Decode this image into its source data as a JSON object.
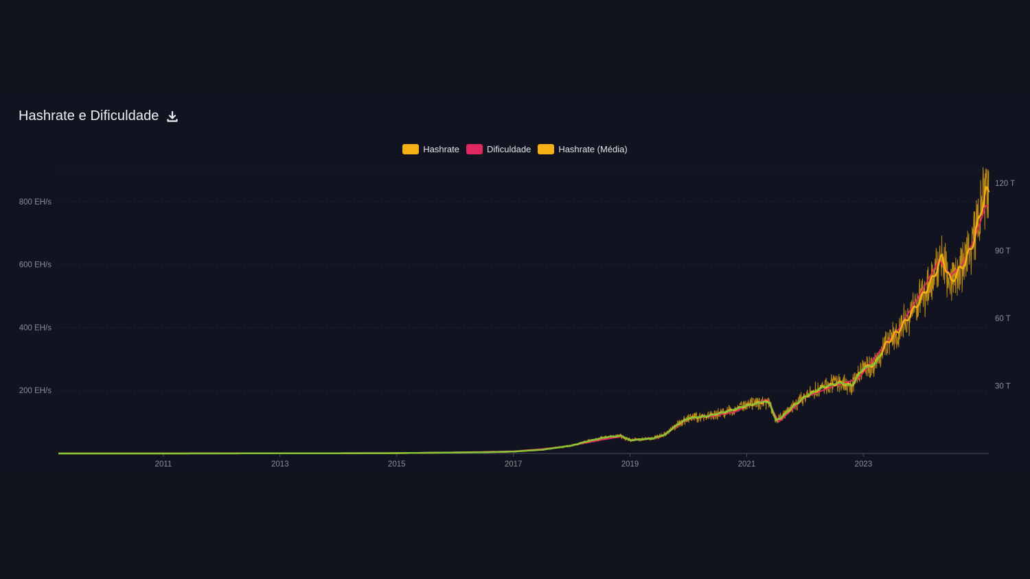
{
  "header": {
    "title": "Hashrate e Dificuldade",
    "download_icon": "download-icon"
  },
  "legend": [
    {
      "label": "Hashrate",
      "color": "#f5b014"
    },
    {
      "label": "Dificuldade",
      "color": "#e0275f"
    },
    {
      "label": "Hashrate (Média)",
      "color": "#f5b014"
    }
  ],
  "colors": {
    "background": "#11131d",
    "grid": "#23263a",
    "hashrate": "#f5b014",
    "dificuldade": "#e0275f",
    "media": "#f5b014",
    "early_line": "#7cc43c"
  },
  "chart_data": {
    "type": "line",
    "title": "Hashrate e Dificuldade",
    "x_ticks": [
      "2011",
      "2013",
      "2015",
      "2017",
      "2019",
      "2021",
      "2023"
    ],
    "x_range": [
      2009.2,
      2025.15
    ],
    "y_left": {
      "ticks": [
        "200 EH/s",
        "400 EH/s",
        "600 EH/s",
        "800 EH/s"
      ],
      "tick_values": [
        200,
        400,
        600,
        800
      ],
      "range": [
        0,
        900
      ],
      "unit": "EH/s"
    },
    "y_right": {
      "ticks": [
        "30 T",
        "60 T",
        "90 T",
        "120 T"
      ],
      "tick_values": [
        30,
        60,
        90,
        120
      ],
      "range": [
        0,
        125.8
      ],
      "unit": "T"
    },
    "grid": true,
    "legend_position": "top-center",
    "series": [
      {
        "name": "Hashrate (Média)",
        "axis": "left",
        "x": [
          2009.2,
          2011,
          2013,
          2015,
          2016,
          2016.5,
          2017,
          2017.5,
          2018,
          2018.3,
          2018.6,
          2018.85,
          2019,
          2019.4,
          2019.6,
          2019.8,
          2020,
          2020.3,
          2020.5,
          2020.7,
          2021,
          2021.3,
          2021.4,
          2021.5,
          2021.6,
          2021.8,
          2022,
          2022.3,
          2022.6,
          2022.8,
          2022.9,
          2023,
          2023.2,
          2023.4,
          2023.6,
          2023.8,
          2024,
          2024.2,
          2024.35,
          2024.5,
          2024.6,
          2024.75,
          2024.9,
          2025,
          2025.1
        ],
        "y": [
          0,
          0,
          0.5,
          1,
          3,
          4,
          6,
          12,
          25,
          40,
          52,
          56,
          42,
          48,
          60,
          90,
          112,
          118,
          126,
          135,
          152,
          165,
          160,
          105,
          115,
          150,
          180,
          210,
          225,
          215,
          245,
          270,
          285,
          350,
          390,
          440,
          495,
          560,
          625,
          545,
          570,
          610,
          680,
          760,
          830
        ]
      },
      {
        "name": "Dificuldade",
        "axis": "right",
        "x": [
          2009.2,
          2011,
          2013,
          2015,
          2016,
          2017,
          2017.5,
          2018,
          2018.5,
          2018.85,
          2019,
          2019.5,
          2019.8,
          2020,
          2020.4,
          2020.8,
          2021,
          2021.35,
          2021.55,
          2021.8,
          2022,
          2022.5,
          2022.9,
          2023,
          2023.3,
          2023.6,
          2024,
          2024.3,
          2024.5,
          2024.7,
          2024.9,
          2025.1
        ],
        "y": [
          0,
          0,
          0.1,
          0.2,
          0.5,
          1,
          2,
          3.5,
          6,
          7.5,
          6,
          7,
          12,
          15.5,
          16.5,
          18.5,
          21,
          24,
          14,
          20,
          25,
          30,
          33,
          36,
          46,
          55,
          72,
          86,
          79,
          84,
          95,
          110
        ]
      }
    ]
  }
}
